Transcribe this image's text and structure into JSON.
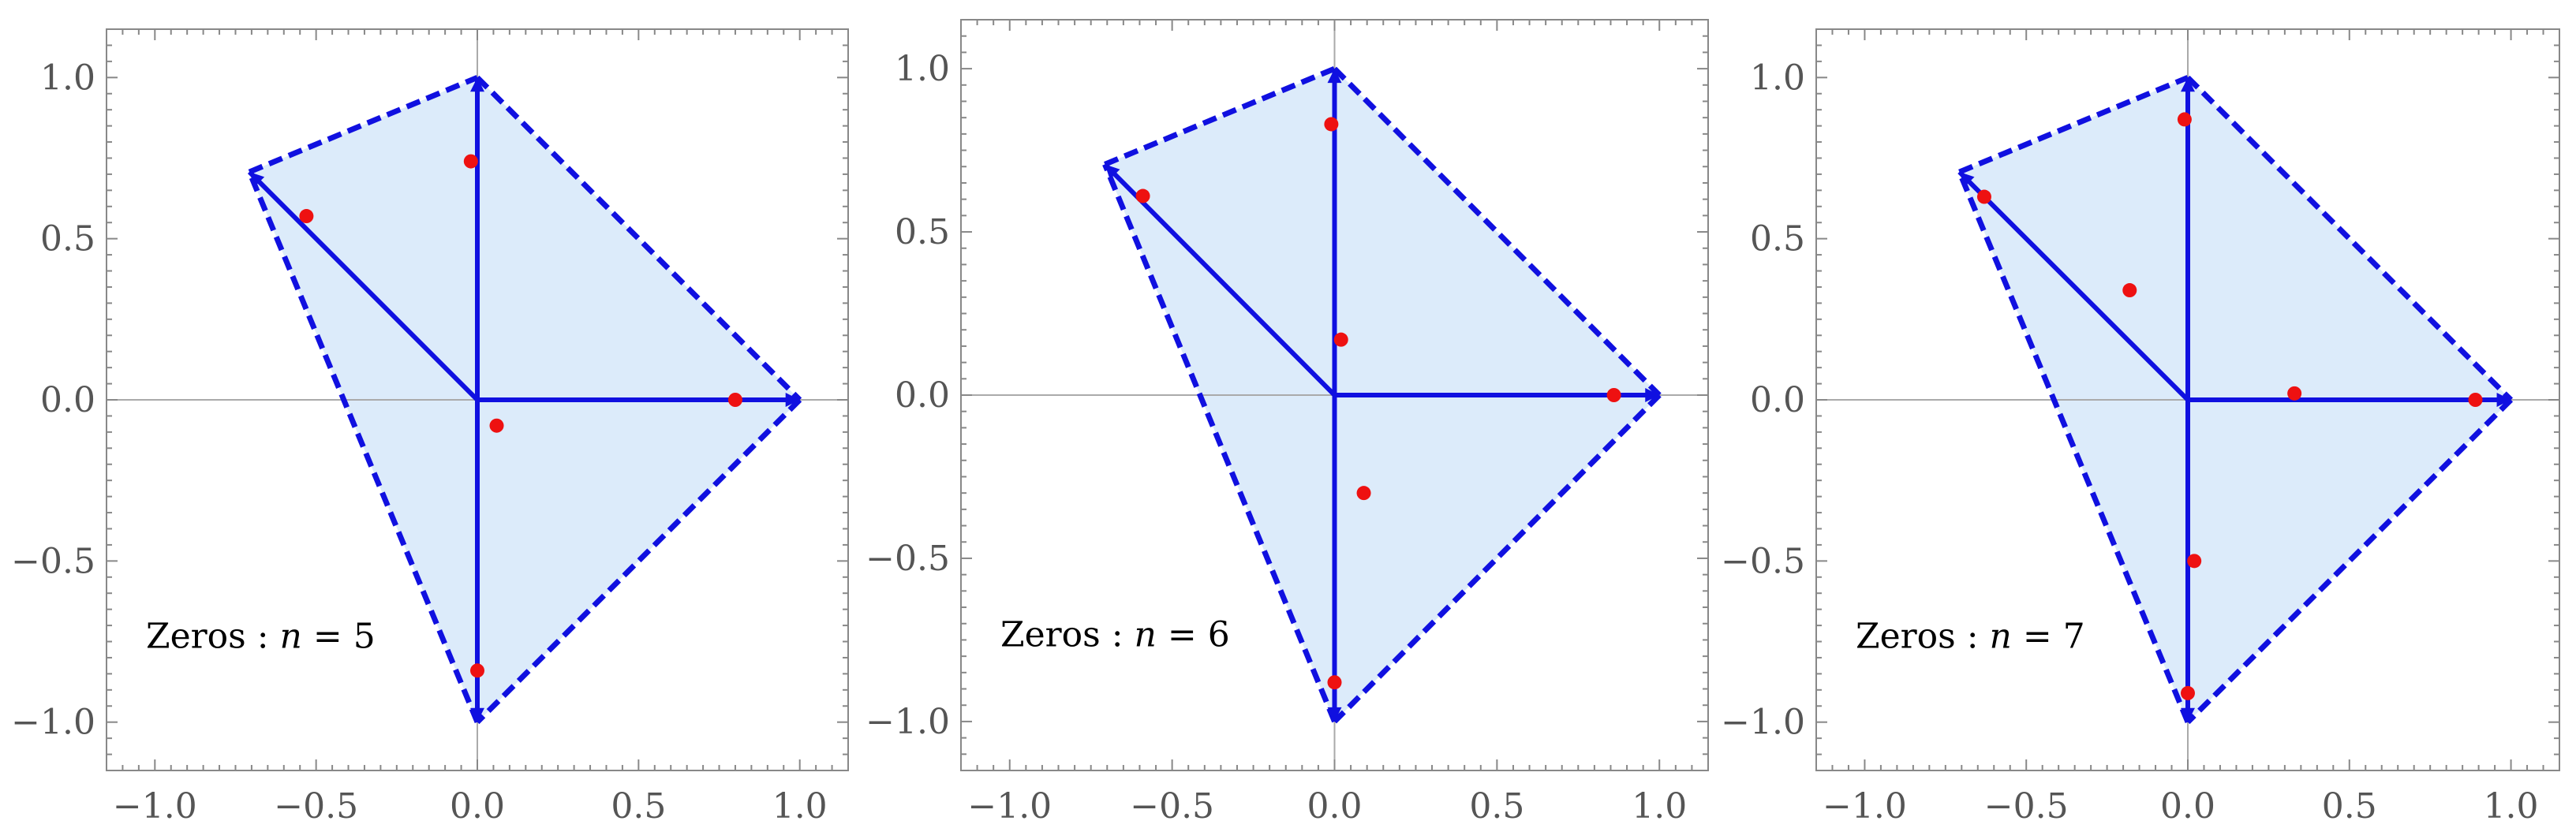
{
  "colors": {
    "fill": "#dcebfa",
    "edge": "#1010e0",
    "zero": "#ee1111",
    "frame": "#888888",
    "axis": "#aaaaaa"
  },
  "chart_data": [
    {
      "type": "scatter",
      "annotation": {
        "prefix": "Zeros : ",
        "var": "n",
        "eq": " = ",
        "value": "5"
      },
      "xlim": [
        -1.15,
        1.15
      ],
      "ylim": [
        -1.15,
        1.15
      ],
      "xticks": [
        "-1.0",
        "-0.5",
        "0.0",
        "0.5",
        "1.0"
      ],
      "yticks": [
        "-1.0",
        "-0.5",
        "0.0",
        "0.5",
        "1.0"
      ],
      "polygon": [
        [
          -0.707,
          0.707
        ],
        [
          0.0,
          1.0
        ],
        [
          1.0,
          0.0
        ],
        [
          0.0,
          -1.0
        ]
      ],
      "rays": [
        [
          -0.707,
          0.707
        ],
        [
          0.0,
          1.0
        ],
        [
          1.0,
          0.0
        ],
        [
          0.0,
          -1.0
        ]
      ],
      "zeros": [
        [
          -0.53,
          0.57
        ],
        [
          -0.02,
          0.74
        ],
        [
          0.8,
          0.0
        ],
        [
          0.06,
          -0.08
        ],
        [
          0.0,
          -0.84
        ]
      ]
    },
    {
      "type": "scatter",
      "annotation": {
        "prefix": "Zeros : ",
        "var": "n",
        "eq": " = ",
        "value": "6"
      },
      "xlim": [
        -1.15,
        1.15
      ],
      "ylim": [
        -1.15,
        1.15
      ],
      "xticks": [
        "-1.0",
        "-0.5",
        "0.0",
        "0.5",
        "1.0"
      ],
      "yticks": [
        "-1.0",
        "-0.5",
        "0.0",
        "0.5",
        "1.0"
      ],
      "polygon": [
        [
          -0.707,
          0.707
        ],
        [
          0.0,
          1.0
        ],
        [
          1.0,
          0.0
        ],
        [
          0.0,
          -1.0
        ]
      ],
      "rays": [
        [
          -0.707,
          0.707
        ],
        [
          0.0,
          1.0
        ],
        [
          1.0,
          0.0
        ],
        [
          0.0,
          -1.0
        ]
      ],
      "zeros": [
        [
          -0.59,
          0.61
        ],
        [
          -0.01,
          0.83
        ],
        [
          0.02,
          0.17
        ],
        [
          0.86,
          0.0
        ],
        [
          0.09,
          -0.3
        ],
        [
          0.0,
          -0.88
        ]
      ]
    },
    {
      "type": "scatter",
      "annotation": {
        "prefix": "Zeros : ",
        "var": "n",
        "eq": " = ",
        "value": "7"
      },
      "xlim": [
        -1.15,
        1.15
      ],
      "ylim": [
        -1.15,
        1.15
      ],
      "xticks": [
        "-1.0",
        "-0.5",
        "0.0",
        "0.5",
        "1.0"
      ],
      "yticks": [
        "-1.0",
        "-0.5",
        "0.0",
        "0.5",
        "1.0"
      ],
      "polygon": [
        [
          -0.707,
          0.707
        ],
        [
          0.0,
          1.0
        ],
        [
          1.0,
          0.0
        ],
        [
          0.0,
          -1.0
        ]
      ],
      "rays": [
        [
          -0.707,
          0.707
        ],
        [
          0.0,
          1.0
        ],
        [
          1.0,
          0.0
        ],
        [
          0.0,
          -1.0
        ]
      ],
      "zeros": [
        [
          -0.63,
          0.63
        ],
        [
          -0.01,
          0.87
        ],
        [
          -0.18,
          0.34
        ],
        [
          0.33,
          0.02
        ],
        [
          0.89,
          0.0
        ],
        [
          0.02,
          -0.5
        ],
        [
          0.0,
          -0.91
        ]
      ]
    }
  ]
}
